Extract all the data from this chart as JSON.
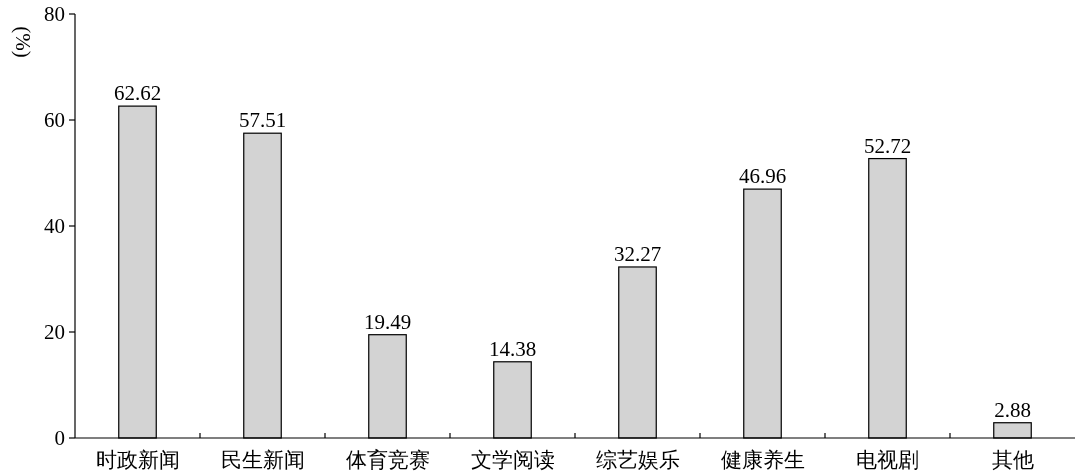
{
  "chart_data": {
    "type": "bar",
    "ylabel": "(%)",
    "categories": [
      "时政新闻",
      "民生新闻",
      "体育竞赛",
      "文学阅读",
      "综艺娱乐",
      "健康养生",
      "电视剧",
      "其他"
    ],
    "values": [
      62.62,
      57.51,
      19.49,
      14.38,
      32.27,
      46.96,
      52.72,
      2.88
    ],
    "color": "#d3d3d3",
    "ylim": [
      0,
      80
    ],
    "yticks": [
      0,
      20,
      40,
      60,
      80
    ],
    "data_labels": true
  }
}
